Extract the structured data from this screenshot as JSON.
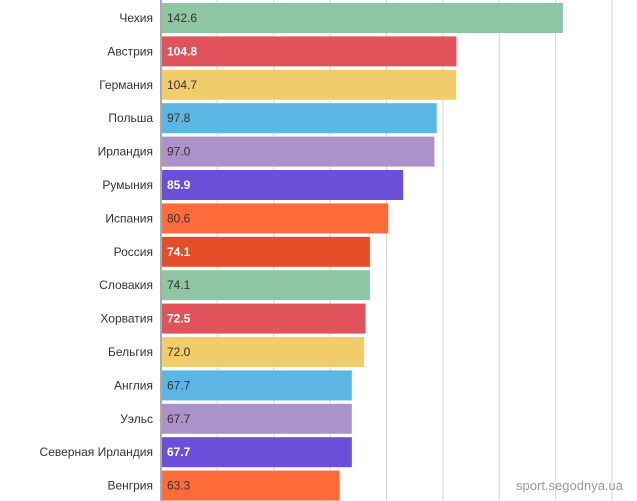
{
  "chart_data": {
    "type": "bar",
    "orientation": "horizontal",
    "categories": [
      "Чехия",
      "Австрия",
      "Германия",
      "Польша",
      "Ирландия",
      "Румыния",
      "Испания",
      "Россия",
      "Словакия",
      "Хорватия",
      "Бельгия",
      "Англия",
      "Уэльс",
      "Северная Ирландия",
      "Венгрия"
    ],
    "values": [
      142.6,
      104.8,
      104.7,
      97.8,
      97.0,
      85.9,
      80.6,
      74.1,
      74.1,
      72.5,
      72.0,
      67.7,
      67.7,
      67.7,
      63.3
    ],
    "value_labels": [
      "142.6",
      "104.8",
      "104.7",
      "97.8",
      "97.0",
      "85.9",
      "80.6",
      "74.1",
      "74.1",
      "72.5",
      "72.0",
      "67.7",
      "67.7",
      "67.7",
      "63.3"
    ],
    "colors": [
      "#8ec5a4",
      "#e0535b",
      "#f1cc6b",
      "#5cb6e3",
      "#ac92c9",
      "#6b4fd8",
      "#ff6b3a",
      "#e34e28",
      "#8ec5a4",
      "#e0535b",
      "#f1cc6b",
      "#5cb6e3",
      "#ac92c9",
      "#6b4fd8",
      "#ff6b3a"
    ],
    "label_colors": [
      "#333333",
      "#ffffff",
      "#333333",
      "#333333",
      "#333333",
      "#ffffff",
      "#333333",
      "#ffffff",
      "#333333",
      "#ffffff",
      "#333333",
      "#333333",
      "#333333",
      "#ffffff",
      "#333333"
    ],
    "xlim": [
      0,
      160
    ],
    "grid": true,
    "title": "",
    "xlabel": "",
    "ylabel": ""
  },
  "watermark": "sport.segodnya.ua"
}
